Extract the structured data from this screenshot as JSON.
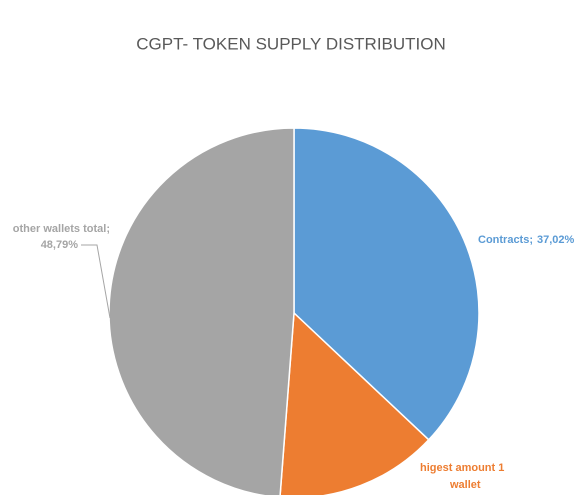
{
  "chart_data": {
    "type": "pie",
    "title": "CGPT- TOKEN SUPPLY DISTRIBUTION",
    "categories": [
      "Contracts",
      "higest amount 1 wallet",
      "other wallets total"
    ],
    "values": [
      37.02,
      14.19,
      48.79
    ],
    "value_labels": [
      "37,02%",
      null,
      "48,79%"
    ],
    "label_separator": ";",
    "colors": [
      "#5b9bd5",
      "#ed7d31",
      "#a5a5a5"
    ]
  }
}
